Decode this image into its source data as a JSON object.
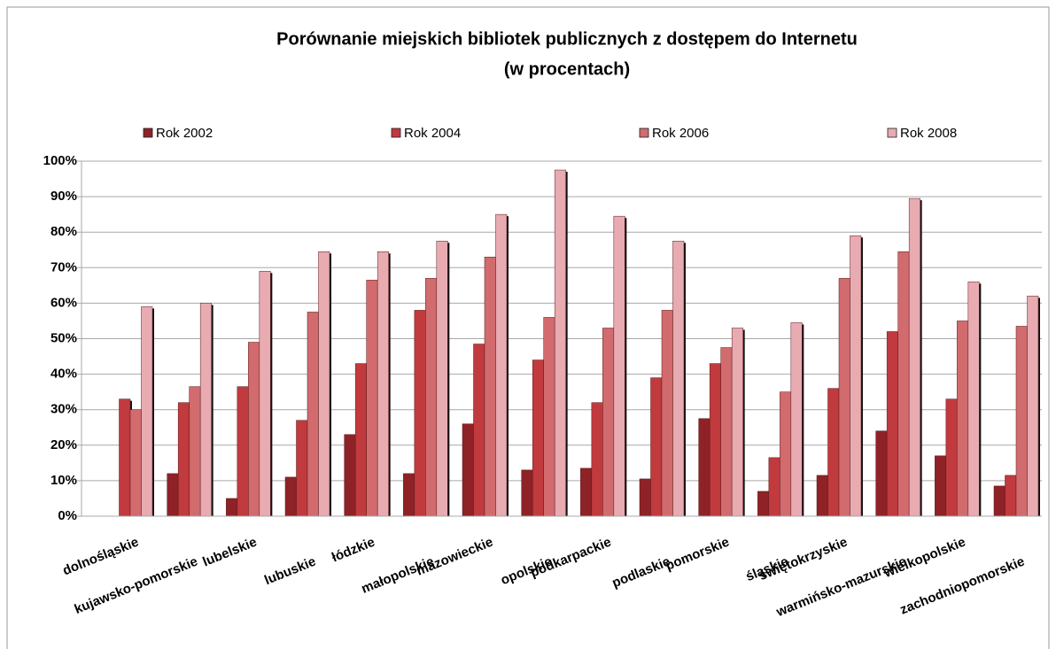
{
  "chart_data": {
    "type": "bar",
    "title": "Porównanie miejskich bibliotek publicznych z dostępem do Internetu",
    "subtitle": "(w procentach)",
    "categories": [
      "dolnośląskie",
      "kujawsko-pomorskie",
      "lubelskie",
      "lubuskie",
      "łódzkie",
      "małopolskie",
      "mazowieckie",
      "opolskie",
      "podkarpackie",
      "podlaskie",
      "pomorskie",
      "śląskie",
      "świętokrzyskie",
      "warmińsko-mazurskie",
      "wielkopolskie",
      "zachodniopomorskie"
    ],
    "series": [
      {
        "name": "Rok 2002",
        "color": "#8e2226",
        "values": [
          null,
          12,
          5,
          11,
          23,
          12,
          26,
          13,
          13.5,
          10.5,
          27.5,
          7,
          11.5,
          24,
          17,
          8.5
        ]
      },
      {
        "name": "Rok 2004",
        "color": "#c13a3e",
        "values": [
          33,
          32,
          36.5,
          27,
          43,
          58,
          48.5,
          44,
          32,
          39,
          43,
          16.5,
          36,
          52,
          33,
          11.5
        ]
      },
      {
        "name": "Rok 2006",
        "color": "#d16b6e",
        "values": [
          30,
          36.5,
          49,
          57.5,
          66.5,
          67,
          73,
          56,
          53,
          58,
          47.5,
          35,
          67,
          74.5,
          55,
          53.5
        ]
      },
      {
        "name": "Rok 2008",
        "color": "#e7abb1",
        "values": [
          59,
          60,
          69,
          74.5,
          74.5,
          77.5,
          85,
          97.5,
          84.5,
          77.5,
          53,
          54.5,
          79,
          89.5,
          66,
          62
        ]
      }
    ],
    "ylim": [
      0,
      100
    ],
    "yticks": [
      {
        "value": 0,
        "label": "0%"
      },
      {
        "value": 10,
        "label": "10%"
      },
      {
        "value": 20,
        "label": "20%"
      },
      {
        "value": 30,
        "label": "30%"
      },
      {
        "value": 40,
        "label": "40%"
      },
      {
        "value": 50,
        "label": "50%"
      },
      {
        "value": 60,
        "label": "60%"
      },
      {
        "value": 70,
        "label": "70%"
      },
      {
        "value": 80,
        "label": "80%"
      },
      {
        "value": 90,
        "label": "90%"
      },
      {
        "value": 100,
        "label": "100%"
      }
    ],
    "grid": true,
    "legend": "top"
  }
}
